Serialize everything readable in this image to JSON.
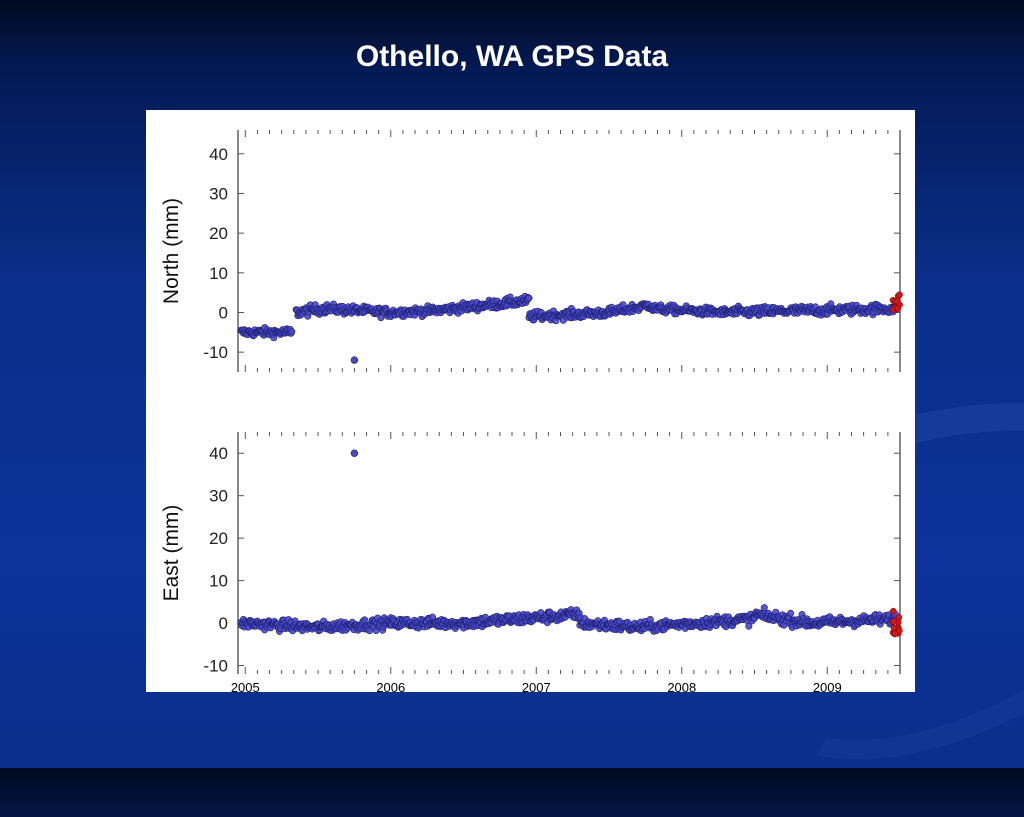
{
  "slide": {
    "title": "Othello, WA GPS Data"
  },
  "colors": {
    "point_fill": "#4848c8",
    "point_stroke": "#1e1e6e",
    "recent_points": "#d01818",
    "axis": "#555555",
    "background": "#0b3399"
  },
  "chart_data": [
    {
      "type": "scatter",
      "ylabel": "North (mm)",
      "xlim": [
        2004.95,
        2009.5
      ],
      "ylim": [
        -15,
        46
      ],
      "yticks": [
        -10,
        0,
        10,
        20,
        30,
        40
      ],
      "grid": false,
      "segments": [
        {
          "x": [
            2004.97,
            2005.32
          ],
          "y_start": -5,
          "y_end": -5,
          "scatter": 1.0
        },
        {
          "x": [
            2005.35,
            2005.55
          ],
          "y_start": 0,
          "y_end": 1,
          "scatter": 1.2
        },
        {
          "x": [
            2005.55,
            2006.0
          ],
          "y_start": 1,
          "y_end": 0,
          "scatter": 1.1
        },
        {
          "x": [
            2006.0,
            2006.3
          ],
          "y_start": 0,
          "y_end": 0.5,
          "scatter": 1.0
        },
        {
          "x": [
            2006.3,
            2006.95
          ],
          "y_start": 0.5,
          "y_end": 3,
          "scatter": 1.1
        },
        {
          "x": [
            2006.95,
            2007.5
          ],
          "y_start": -1,
          "y_end": 0,
          "scatter": 1.1
        },
        {
          "x": [
            2007.5,
            2007.8
          ],
          "y_start": 0,
          "y_end": 2,
          "scatter": 1.1
        },
        {
          "x": [
            2007.8,
            2008.3
          ],
          "y_start": 1,
          "y_end": 0,
          "scatter": 1.0
        },
        {
          "x": [
            2008.3,
            2009.47
          ],
          "y_start": 0,
          "y_end": 1,
          "scatter": 1.2
        }
      ],
      "outliers": [
        {
          "x": 2005.75,
          "y": -12
        }
      ],
      "recent": {
        "x": [
          2009.45,
          2009.5
        ],
        "y": [
          0,
          5
        ]
      }
    },
    {
      "type": "scatter",
      "ylabel": "East (mm)",
      "xlim": [
        2004.95,
        2009.5
      ],
      "ylim": [
        -12,
        45
      ],
      "yticks": [
        -10,
        0,
        10,
        20,
        30,
        40
      ],
      "grid": false,
      "xtick_labels": [
        "2005",
        "2006",
        "2007",
        "2008",
        "2009"
      ],
      "xtick_values": [
        2005,
        2006,
        2007,
        2008,
        2009
      ],
      "segments": [
        {
          "x": [
            2004.97,
            2005.5
          ],
          "y_start": 0,
          "y_end": -1,
          "scatter": 1.2
        },
        {
          "x": [
            2005.5,
            2006.0
          ],
          "y_start": -1,
          "y_end": 0,
          "scatter": 1.2
        },
        {
          "x": [
            2006.0,
            2006.5
          ],
          "y_start": 0,
          "y_end": 0,
          "scatter": 1.2
        },
        {
          "x": [
            2006.5,
            2007.3
          ],
          "y_start": 0,
          "y_end": 2,
          "scatter": 1.3
        },
        {
          "x": [
            2007.3,
            2007.7
          ],
          "y_start": 0,
          "y_end": -1,
          "scatter": 1.3
        },
        {
          "x": [
            2007.7,
            2008.5
          ],
          "y_start": -1,
          "y_end": 1,
          "scatter": 1.2
        },
        {
          "x": [
            2008.5,
            2008.9
          ],
          "y_start": 2,
          "y_end": 0,
          "scatter": 1.3
        },
        {
          "x": [
            2008.9,
            2009.47
          ],
          "y_start": 0,
          "y_end": 1,
          "scatter": 1.2
        }
      ],
      "outliers": [
        {
          "x": 2005.75,
          "y": 40
        }
      ],
      "recent": {
        "x": [
          2009.45,
          2009.5
        ],
        "y": [
          -3,
          3
        ]
      }
    }
  ]
}
